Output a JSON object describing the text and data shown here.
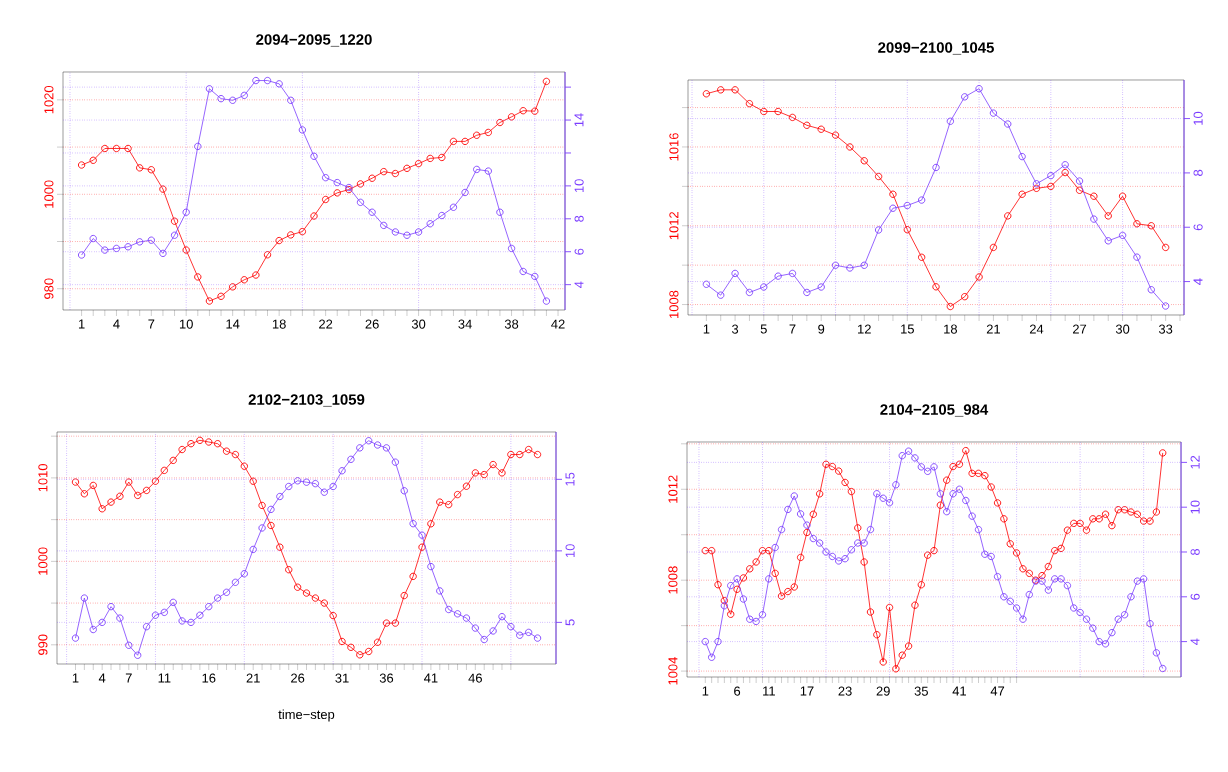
{
  "chart_data": [
    {
      "type": "line",
      "title": "2094−2095_1220",
      "marker": "circle",
      "grid": true,
      "x": [
        1,
        2,
        3,
        4,
        5,
        6,
        7,
        8,
        9,
        10,
        11,
        12,
        13,
        14,
        15,
        16,
        17,
        18,
        19,
        20,
        21,
        22,
        23,
        24,
        25,
        26,
        27,
        28,
        29,
        30,
        31,
        32,
        33,
        34,
        35,
        36,
        37,
        38,
        39,
        40,
        41
      ],
      "xlim": [
        -0.6,
        42.6
      ],
      "xticks": [
        1,
        {
          "value": 2,
          "label": null
        },
        {
          "value": 3,
          "label": null
        },
        4,
        {
          "value": 5,
          "label": null
        },
        {
          "value": 6,
          "label": null
        },
        7,
        {
          "value": 8,
          "label": null
        },
        {
          "value": 9,
          "label": null
        },
        10,
        {
          "value": 11,
          "label": null
        },
        {
          "value": 12,
          "label": null
        },
        {
          "value": 13,
          "label": null
        },
        14,
        {
          "value": 15,
          "label": null
        },
        {
          "value": 16,
          "label": null
        },
        {
          "value": 17,
          "label": null
        },
        18,
        {
          "value": 19,
          "label": null
        },
        {
          "value": 20,
          "label": null
        },
        {
          "value": 21,
          "label": null
        },
        22,
        {
          "value": 23,
          "label": null
        },
        {
          "value": 24,
          "label": null
        },
        {
          "value": 25,
          "label": null
        },
        26,
        {
          "value": 27,
          "label": null
        },
        {
          "value": 28,
          "label": null
        },
        {
          "value": 29,
          "label": null
        },
        30,
        {
          "value": 31,
          "label": null
        },
        {
          "value": 32,
          "label": null
        },
        {
          "value": 33,
          "label": null
        },
        34,
        {
          "value": 35,
          "label": null
        },
        {
          "value": 36,
          "label": null
        },
        {
          "value": 37,
          "label": null
        },
        38,
        {
          "value": 39,
          "label": null
        },
        {
          "value": 40,
          "label": null
        },
        {
          "value": 41,
          "label": null
        },
        42
      ],
      "ylim": [
        975.5,
        1025.9
      ],
      "yticks": [
        980,
        {
          "value": 990,
          "label": null
        },
        1000,
        {
          "value": 1010,
          "label": null
        },
        1020
      ],
      "y2lim": [
        2.46,
        16.92
      ],
      "y2ticks": [
        4,
        6,
        8,
        10,
        {
          "value": 12,
          "label": null
        },
        14,
        {
          "value": 16,
          "label": null
        }
      ],
      "series": [
        {
          "color": "#ff0000",
          "values": [
            1006.2,
            1007.2,
            1009.7,
            1009.7,
            1009.7,
            1005.6,
            1005.2,
            1001.1,
            994.3,
            988.2,
            982.5,
            977.4,
            978.4,
            980.4,
            981.9,
            982.9,
            987.2,
            990.2,
            991.4,
            992.1,
            995.4,
            998.9,
            1000.3,
            1001.0,
            1002.2,
            1003.4,
            1004.8,
            1004.4,
            1005.5,
            1006.5,
            1007.6,
            1007.8,
            1011.2,
            1011.2,
            1012.5,
            1013.1,
            1015.2,
            1016.4,
            1017.7,
            1017.6,
            1023.9
          ]
        },
        {
          "color": "#7b3dff",
          "axis": "y2",
          "values": [
            5.8,
            6.8,
            6.1,
            6.2,
            6.3,
            6.6,
            6.7,
            5.9,
            7.0,
            8.4,
            12.4,
            15.9,
            15.3,
            15.2,
            15.5,
            16.4,
            16.4,
            16.2,
            15.2,
            13.4,
            11.8,
            10.5,
            10.2,
            9.9,
            9.0,
            8.4,
            7.6,
            7.2,
            7.0,
            7.2,
            7.7,
            8.2,
            8.7,
            9.6,
            11.0,
            10.9,
            8.4,
            6.2,
            4.8,
            4.5,
            3.0
          ]
        }
      ]
    },
    {
      "type": "line",
      "title": "2099−2100_1045",
      "marker": "circle",
      "grid": true,
      "x": [
        1,
        2,
        3,
        4,
        5,
        6,
        7,
        8,
        9,
        10,
        11,
        12,
        13,
        14,
        15,
        16,
        17,
        18,
        19,
        20,
        21,
        22,
        23,
        24,
        25,
        26,
        27,
        28,
        29,
        30,
        31,
        32,
        33
      ],
      "xlim": [
        -0.28,
        34.28
      ],
      "xticks": [
        1,
        {
          "value": 2,
          "label": null
        },
        3,
        {
          "value": 4,
          "label": null
        },
        5,
        {
          "value": 6,
          "label": null
        },
        7,
        {
          "value": 8,
          "label": null
        },
        9,
        {
          "value": 10,
          "label": null
        },
        {
          "value": 11,
          "label": null
        },
        12,
        {
          "value": 13,
          "label": null
        },
        {
          "value": 14,
          "label": null
        },
        15,
        {
          "value": 16,
          "label": null
        },
        {
          "value": 17,
          "label": null
        },
        18,
        {
          "value": 19,
          "label": null
        },
        {
          "value": 20,
          "label": null
        },
        21,
        {
          "value": 22,
          "label": null
        },
        {
          "value": 23,
          "label": null
        },
        24,
        {
          "value": 25,
          "label": null
        },
        {
          "value": 26,
          "label": null
        },
        27,
        {
          "value": 28,
          "label": null
        },
        {
          "value": 29,
          "label": null
        },
        30,
        {
          "value": 31,
          "label": null
        },
        {
          "value": 32,
          "label": null
        },
        33,
        {
          "value": 34,
          "label": null
        }
      ],
      "ylim": [
        1007.47,
        1019.4
      ],
      "yticks": [
        1008,
        {
          "value": 1010,
          "label": null
        },
        1012,
        {
          "value": 1014,
          "label": null
        },
        1016,
        {
          "value": 1018,
          "label": null
        }
      ],
      "y2lim": [
        2.77,
        11.42
      ],
      "y2ticks": [
        4,
        6,
        8,
        10
      ],
      "series": [
        {
          "color": "#ff0000",
          "values": [
            1018.7,
            1018.9,
            1018.9,
            1018.2,
            1017.8,
            1017.8,
            1017.5,
            1017.1,
            1016.9,
            1016.6,
            1016.0,
            1015.3,
            1014.5,
            1013.6,
            1011.8,
            1010.4,
            1008.9,
            1007.9,
            1008.4,
            1009.4,
            1010.9,
            1012.5,
            1013.6,
            1013.9,
            1014.0,
            1014.7,
            1013.8,
            1013.5,
            1012.5,
            1013.5,
            1012.1,
            1012.0,
            1010.9
          ]
        },
        {
          "color": "#7b3dff",
          "axis": "y2",
          "values": [
            3.9,
            3.5,
            4.3,
            3.6,
            3.8,
            4.2,
            4.3,
            3.6,
            3.8,
            4.6,
            4.5,
            4.6,
            5.9,
            6.7,
            6.8,
            7.0,
            8.2,
            9.9,
            10.8,
            11.1,
            10.2,
            9.8,
            8.6,
            7.6,
            7.9,
            8.3,
            7.7,
            6.3,
            5.5,
            5.7,
            4.9,
            3.7,
            3.1
          ]
        }
      ]
    },
    {
      "type": "line",
      "title": "2102−2103_1059",
      "xlabel": "time−step",
      "marker": "circle",
      "grid": true,
      "x": [
        1,
        2,
        3,
        4,
        5,
        6,
        7,
        8,
        9,
        10,
        11,
        12,
        13,
        14,
        15,
        16,
        17,
        18,
        19,
        20,
        21,
        22,
        23,
        24,
        25,
        26,
        27,
        28,
        29,
        30,
        31,
        32,
        33,
        34,
        35,
        36,
        37,
        38,
        39,
        40,
        41,
        42,
        43,
        44,
        45,
        46,
        47,
        48,
        49,
        50,
        51,
        52,
        53
      ],
      "xlim": [
        -1.08,
        55.08
      ],
      "xticks": [
        1,
        {
          "value": 2,
          "label": null
        },
        {
          "value": 3,
          "label": null
        },
        4,
        {
          "value": 5,
          "label": null
        },
        {
          "value": 6,
          "label": null
        },
        7,
        {
          "value": 8,
          "label": null
        },
        {
          "value": 9,
          "label": null
        },
        {
          "value": 10,
          "label": null
        },
        11,
        {
          "value": 12,
          "label": null
        },
        {
          "value": 13,
          "label": null
        },
        {
          "value": 14,
          "label": null
        },
        {
          "value": 15,
          "label": null
        },
        16,
        {
          "value": 17,
          "label": null
        },
        {
          "value": 18,
          "label": null
        },
        {
          "value": 19,
          "label": null
        },
        {
          "value": 20,
          "label": null
        },
        21,
        {
          "value": 22,
          "label": null
        },
        {
          "value": 23,
          "label": null
        },
        {
          "value": 24,
          "label": null
        },
        {
          "value": 25,
          "label": null
        },
        26,
        {
          "value": 27,
          "label": null
        },
        {
          "value": 28,
          "label": null
        },
        {
          "value": 29,
          "label": null
        },
        {
          "value": 30,
          "label": null
        },
        31,
        {
          "value": 32,
          "label": null
        },
        {
          "value": 33,
          "label": null
        },
        {
          "value": 34,
          "label": null
        },
        {
          "value": 35,
          "label": null
        },
        36,
        {
          "value": 37,
          "label": null
        },
        {
          "value": 38,
          "label": null
        },
        {
          "value": 39,
          "label": null
        },
        {
          "value": 40,
          "label": null
        },
        41,
        {
          "value": 42,
          "label": null
        },
        {
          "value": 43,
          "label": null
        },
        {
          "value": 44,
          "label": null
        },
        {
          "value": 45,
          "label": null
        },
        46,
        {
          "value": 47,
          "label": null
        },
        {
          "value": 48,
          "label": null
        },
        {
          "value": 49,
          "label": null
        },
        {
          "value": 50,
          "label": null
        }
      ],
      "ylim": [
        987.7,
        1015.5
      ],
      "yticks": [
        990,
        {
          "value": 995,
          "label": null
        },
        1000,
        {
          "value": 1005,
          "label": null
        },
        1010,
        {
          "value": 1015,
          "label": null
        }
      ],
      "y2lim": [
        2.09,
        18.31
      ],
      "y2ticks": [
        5,
        10,
        15
      ],
      "series": [
        {
          "color": "#ff0000",
          "values": [
            1009.5,
            1008.1,
            1009.1,
            1006.3,
            1007.1,
            1007.8,
            1009.5,
            1007.9,
            1008.5,
            1009.6,
            1010.9,
            1012.1,
            1013.4,
            1014.1,
            1014.5,
            1014.3,
            1014.1,
            1013.2,
            1012.8,
            1011.4,
            1009.6,
            1006.7,
            1004.3,
            1001.7,
            999.0,
            996.9,
            996.2,
            995.6,
            995.0,
            993.5,
            990.4,
            989.7,
            988.8,
            989.2,
            990.3,
            992.6,
            992.6,
            995.9,
            998.2,
            1001.7,
            1004.5,
            1007.1,
            1006.8,
            1008.0,
            1009.0,
            1010.6,
            1010.4,
            1011.6,
            1010.6,
            1012.8,
            1012.8,
            1013.4,
            1012.8
          ]
        },
        {
          "color": "#7b3dff",
          "axis": "y2",
          "values": [
            3.9,
            6.7,
            4.5,
            5.0,
            6.1,
            5.3,
            3.4,
            2.7,
            4.7,
            5.5,
            5.7,
            6.4,
            5.1,
            5.0,
            5.5,
            6.1,
            6.7,
            7.1,
            7.8,
            8.4,
            10.1,
            11.6,
            12.9,
            13.8,
            14.5,
            14.9,
            14.8,
            14.7,
            14.1,
            14.5,
            15.6,
            16.4,
            17.2,
            17.7,
            17.4,
            17.2,
            16.2,
            14.2,
            11.9,
            11.1,
            8.9,
            7.2,
            5.9,
            5.6,
            5.3,
            4.6,
            3.8,
            4.4,
            5.4,
            4.7,
            4.1,
            4.3,
            3.9
          ]
        }
      ]
    },
    {
      "type": "line",
      "title": "2104−2105_984",
      "marker": "circle",
      "grid": true,
      "x": [
        1,
        2,
        3,
        4,
        5,
        6,
        7,
        8,
        9,
        10,
        11,
        12,
        13,
        14,
        15,
        16,
        17,
        18,
        19,
        20,
        21,
        22,
        23,
        24,
        25,
        26,
        27,
        28,
        29,
        30,
        31,
        32,
        33,
        34,
        35,
        36,
        37,
        38,
        39,
        40,
        41,
        42,
        43,
        44,
        45,
        46,
        47,
        48,
        49,
        50,
        51,
        52,
        53,
        54,
        55,
        56,
        57,
        58,
        59,
        60,
        61,
        62,
        63,
        64,
        65,
        66,
        67,
        68,
        69,
        70,
        71,
        72,
        73
      ],
      "xlim": [
        -1.88,
        75.88
      ],
      "xticks": [
        1,
        {
          "value": 2,
          "label": null
        },
        {
          "value": 3,
          "label": null
        },
        {
          "value": 4,
          "label": null
        },
        {
          "value": 5,
          "label": null
        },
        6,
        {
          "value": 7,
          "label": null
        },
        {
          "value": 8,
          "label": null
        },
        {
          "value": 9,
          "label": null
        },
        {
          "value": 10,
          "label": null
        },
        11,
        {
          "value": 12,
          "label": null
        },
        {
          "value": 13,
          "label": null
        },
        {
          "value": 14,
          "label": null
        },
        {
          "value": 15,
          "label": null
        },
        {
          "value": 16,
          "label": null
        },
        17,
        {
          "value": 18,
          "label": null
        },
        {
          "value": 19,
          "label": null
        },
        {
          "value": 20,
          "label": null
        },
        {
          "value": 21,
          "label": null
        },
        {
          "value": 22,
          "label": null
        },
        23,
        {
          "value": 24,
          "label": null
        },
        {
          "value": 25,
          "label": null
        },
        {
          "value": 26,
          "label": null
        },
        {
          "value": 27,
          "label": null
        },
        {
          "value": 28,
          "label": null
        },
        29,
        {
          "value": 30,
          "label": null
        },
        {
          "value": 31,
          "label": null
        },
        {
          "value": 32,
          "label": null
        },
        {
          "value": 33,
          "label": null
        },
        {
          "value": 34,
          "label": null
        },
        35,
        {
          "value": 36,
          "label": null
        },
        {
          "value": 37,
          "label": null
        },
        {
          "value": 38,
          "label": null
        },
        {
          "value": 39,
          "label": null
        },
        {
          "value": 40,
          "label": null
        },
        41,
        {
          "value": 42,
          "label": null
        },
        {
          "value": 43,
          "label": null
        },
        {
          "value": 44,
          "label": null
        },
        {
          "value": 45,
          "label": null
        },
        {
          "value": 46,
          "label": null
        },
        47,
        {
          "value": 48,
          "label": null
        },
        {
          "value": 49,
          "label": null
        },
        {
          "value": 50,
          "label": null
        }
      ],
      "ylim": [
        1003.74,
        1014.08
      ],
      "yticks": [
        1004,
        {
          "value": 1006,
          "label": null
        },
        1008,
        {
          "value": 1010,
          "label": null
        },
        1012,
        {
          "value": 1014,
          "label": null
        }
      ],
      "y2lim": [
        2.42,
        12.91
      ],
      "y2ticks": [
        4,
        6,
        8,
        10,
        12
      ],
      "series": [
        {
          "color": "#ff0000",
          "values": [
            1009.3,
            1009.3,
            1007.8,
            1007.1,
            1006.5,
            1007.6,
            1008.1,
            1008.5,
            1008.8,
            1009.3,
            1009.3,
            1008.3,
            1007.3,
            1007.5,
            1007.7,
            1009.0,
            1010.1,
            1010.9,
            1011.8,
            1013.1,
            1013.0,
            1012.8,
            1012.3,
            1011.9,
            1010.3,
            1008.8,
            1006.6,
            1005.6,
            1004.4,
            1006.8,
            1004.1,
            1004.7,
            1005.1,
            1006.9,
            1007.8,
            1009.1,
            1009.3,
            1011.3,
            1012.4,
            1013.0,
            1013.1,
            1013.7,
            1012.7,
            1012.7,
            1012.6,
            1012.1,
            1011.4,
            1010.7,
            1009.6,
            1009.2,
            1008.5,
            1008.3,
            1008.0,
            1008.2,
            1008.6,
            1009.3,
            1009.4,
            1010.2,
            1010.5,
            1010.5,
            1010.2,
            1010.7,
            1010.7,
            1010.9,
            1010.4,
            1011.1,
            1011.1,
            1011.0,
            1010.9,
            1010.6,
            1010.6,
            1011.0,
            1013.6
          ]
        },
        {
          "color": "#7b3dff",
          "axis": "y2",
          "values": [
            4.0,
            3.3,
            4.0,
            5.6,
            6.5,
            6.8,
            5.9,
            5.0,
            4.9,
            5.2,
            6.8,
            8.2,
            9.0,
            9.9,
            10.5,
            9.7,
            9.2,
            8.6,
            8.4,
            8.0,
            7.8,
            7.6,
            7.7,
            8.1,
            8.4,
            8.4,
            9.0,
            10.6,
            10.4,
            10.2,
            11.0,
            12.3,
            12.5,
            12.2,
            11.8,
            11.6,
            11.8,
            10.6,
            9.8,
            10.6,
            10.8,
            10.3,
            9.6,
            9.0,
            7.9,
            7.8,
            6.9,
            6.0,
            5.8,
            5.5,
            5.0,
            6.1,
            6.7,
            6.7,
            6.3,
            6.8,
            6.8,
            6.5,
            5.5,
            5.3,
            5.0,
            4.6,
            4.0,
            3.9,
            4.4,
            5.0,
            5.2,
            6.0,
            6.7,
            6.8,
            4.8,
            3.5,
            2.8
          ]
        }
      ]
    }
  ]
}
